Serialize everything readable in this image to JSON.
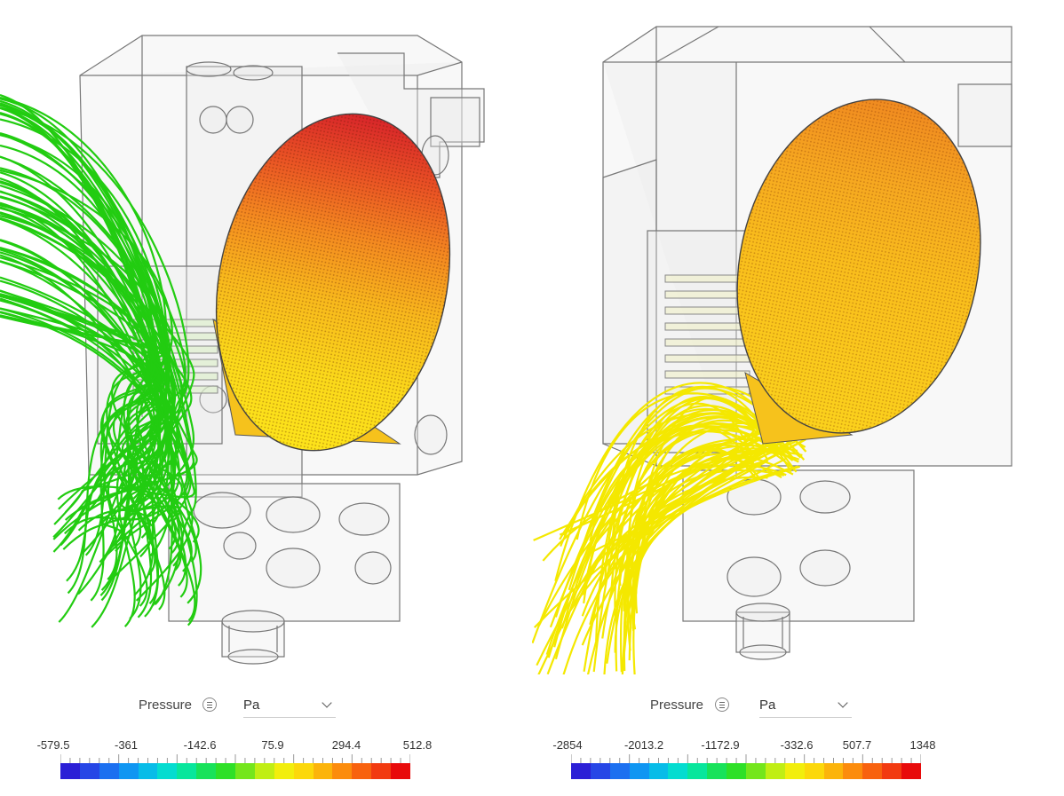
{
  "panels": [
    {
      "field_label": "Pressure",
      "unit": "Pa",
      "ticks": [
        "-579.5",
        "-361",
        "-142.6",
        "75.9",
        "294.4",
        "512.8"
      ],
      "streamline_color": "#22cc11",
      "cap_level": 0.95
    },
    {
      "field_label": "Pressure",
      "unit": "Pa",
      "ticks": [
        "-2854",
        "-2013.2",
        "-1172.9",
        "-332.6",
        "507.7",
        "1348"
      ],
      "streamline_color": "#f4e800",
      "cap_level": 0.8
    }
  ],
  "colormap": [
    "#2b1fd6",
    "#2646e6",
    "#1c70f0",
    "#1096f2",
    "#08bce8",
    "#04dcd0",
    "#08e69c",
    "#18e25a",
    "#2ee028",
    "#74e61c",
    "#c0ee14",
    "#f2ee0c",
    "#fcd80a",
    "#fcb40a",
    "#fc8c0c",
    "#f8620e",
    "#f23a10",
    "#e80a0a"
  ]
}
